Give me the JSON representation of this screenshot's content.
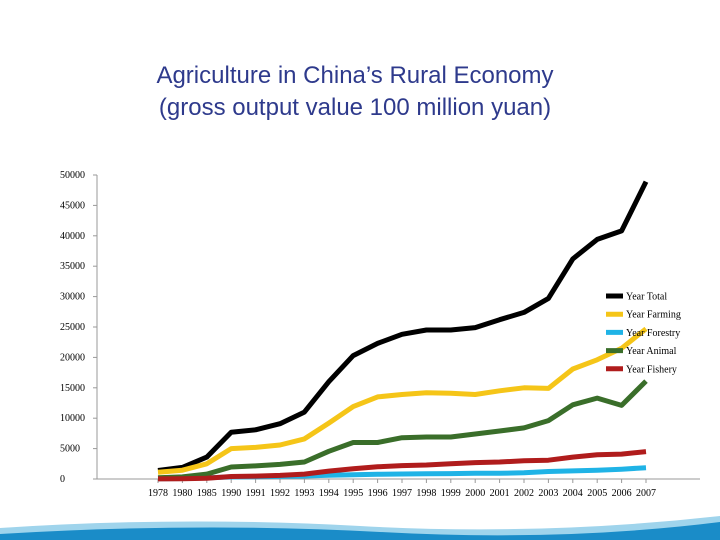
{
  "slide": {
    "title_line1": "Agriculture in China’s Rural Economy",
    "title_line2": "(gross output value 100 million yuan)"
  },
  "chart_data": {
    "type": "line",
    "title": "Agriculture in China’s Rural Economy (gross output value 100 million yuan)",
    "xlabel": "",
    "ylabel": "",
    "ylim": [
      0,
      50000
    ],
    "y_ticks": [
      0,
      5000,
      10000,
      15000,
      20000,
      25000,
      30000,
      35000,
      40000,
      45000,
      50000
    ],
    "grid": false,
    "legend_position": "right",
    "categories": [
      "1978",
      "1980",
      "1985",
      "1990",
      "1991",
      "1992",
      "1993",
      "1994",
      "1995",
      "1996",
      "1997",
      "1998",
      "1999",
      "2000",
      "2001",
      "2002",
      "2003",
      "2004",
      "2005",
      "2006",
      "2007"
    ],
    "series": [
      {
        "name": "Year Total",
        "color": "#000000",
        "values": [
          1400,
          1900,
          3600,
          7700,
          8100,
          9100,
          11000,
          16000,
          20300,
          22300,
          23800,
          24500,
          24500,
          24900,
          26200,
          27400,
          29700,
          36200,
          39400,
          40800,
          48900
        ]
      },
      {
        "name": "Year Farming",
        "color": "#f5c518",
        "values": [
          1100,
          1450,
          2500,
          5000,
          5200,
          5600,
          6600,
          9200,
          11900,
          13500,
          13900,
          14200,
          14100,
          13900,
          14500,
          15000,
          14900,
          18100,
          19600,
          21500,
          24700
        ]
      },
      {
        "name": "Year Forestry",
        "color": "#1fb3e6",
        "values": [
          50,
          80,
          190,
          330,
          370,
          420,
          490,
          610,
          710,
          780,
          820,
          850,
          890,
          940,
          940,
          1030,
          1240,
          1330,
          1430,
          1610,
          1860
        ]
      },
      {
        "name": "Year Animal",
        "color": "#3a6e2a",
        "values": [
          210,
          350,
          800,
          1970,
          2150,
          2400,
          2800,
          4550,
          6000,
          6000,
          6800,
          6900,
          6900,
          7400,
          7900,
          8400,
          9600,
          12200,
          13300,
          12100,
          16100
        ]
      },
      {
        "name": "Year Fishery",
        "color": "#b01c1c",
        "values": [
          20,
          30,
          130,
          410,
          480,
          600,
          800,
          1300,
          1700,
          2000,
          2200,
          2300,
          2500,
          2700,
          2800,
          3000,
          3100,
          3600,
          4000,
          4100,
          4500
        ]
      }
    ]
  }
}
